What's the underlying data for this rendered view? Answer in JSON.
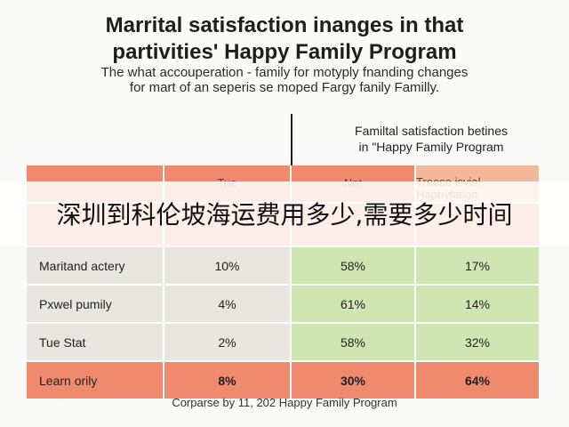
{
  "title_line1": "Marrital satisfaction inanges in that",
  "title_line2": "partivities' Happy Family Program",
  "subtitle_line1": "The what accouperation - family for motyply fnanding changes",
  "subtitle_line2": "for mart of an seperis se moped Fargy fanily Familly.",
  "column_header_line1": "Familtal satisfaction betines",
  "column_header_line2": "in \"Happy Family Program",
  "table": {
    "headers": [
      "",
      "Tue",
      "Not",
      "Treese isvial Happyfation"
    ],
    "rows": [
      {
        "label": "Maritand actery",
        "values": [
          "10%",
          "58%",
          "17%"
        ]
      },
      {
        "label": "Pxwel pumily",
        "values": [
          "4%",
          "61%",
          "14%"
        ]
      },
      {
        "label": "Tue Stat",
        "values": [
          "2%",
          "58%",
          "32%"
        ]
      },
      {
        "label": "Learn orily",
        "values": [
          "8%",
          "30%",
          "64%"
        ]
      }
    ]
  },
  "footer": "Corparse by 11, 202 Happy Family Program",
  "overlay_text": "深圳到科伦坡海运费用多少,需要多少时间",
  "colors": {
    "red": "#f08a6e",
    "green": "#cfe6b2",
    "grey": "#e8e6e1"
  }
}
